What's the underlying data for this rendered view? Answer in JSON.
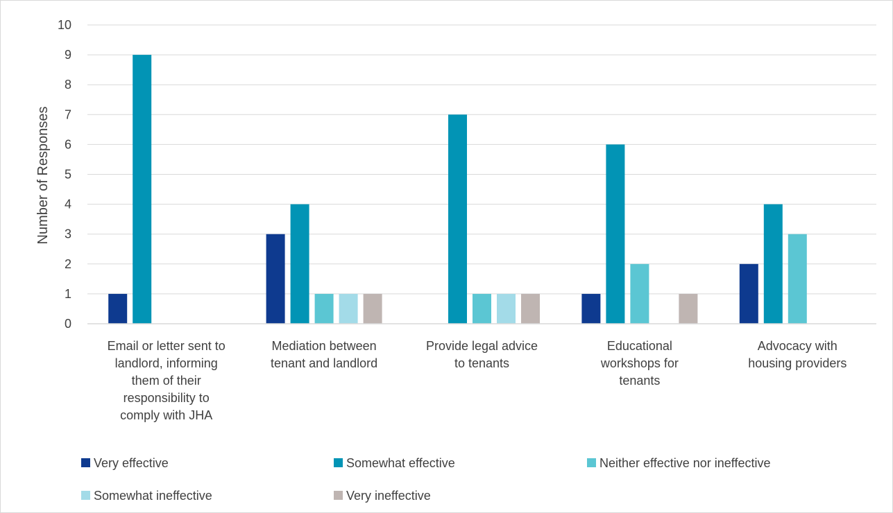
{
  "chart_data": {
    "type": "bar",
    "title": "",
    "xlabel": "",
    "ylabel": "Number of Responses",
    "ylim": [
      0,
      10
    ],
    "yticks": [
      "0",
      "1",
      "2",
      "3",
      "4",
      "5",
      "6",
      "7",
      "8",
      "9",
      "10"
    ],
    "grid": true,
    "legend_position": "bottom",
    "categories": [
      "Email or letter sent to landlord, informing them of their responsibility to comply with JHA",
      "Mediation between tenant and landlord",
      "Provide legal advice to tenants",
      "Educational workshops for tenants",
      "Advocacy with housing providers"
    ],
    "category_lines": [
      [
        "Email or letter sent to",
        "landlord, informing",
        "them of their",
        "responsibility to",
        "comply with JHA"
      ],
      [
        "Mediation between",
        "tenant and landlord"
      ],
      [
        "Provide legal advice",
        "to tenants"
      ],
      [
        "Educational",
        "workshops for",
        "tenants"
      ],
      [
        "Advocacy with",
        "housing providers"
      ]
    ],
    "series": [
      {
        "name": "Very effective",
        "color": "#0e3a8f",
        "values": [
          1,
          3,
          0,
          1,
          2
        ]
      },
      {
        "name": "Somewhat effective",
        "color": "#0294b5",
        "values": [
          9,
          4,
          7,
          6,
          4
        ]
      },
      {
        "name": "Neither effective nor ineffective",
        "color": "#5bc6d3",
        "values": [
          0,
          1,
          1,
          2,
          3
        ]
      },
      {
        "name": "Somewhat ineffective",
        "color": "#a3dbe8",
        "values": [
          0,
          1,
          1,
          0,
          0
        ]
      },
      {
        "name": "Very ineffective",
        "color": "#bfb5b2",
        "values": [
          0,
          1,
          1,
          1,
          0
        ]
      }
    ],
    "colors": {
      "grid": "#d9d9d9",
      "axis": "#d9d9d9",
      "text": "#404040"
    }
  }
}
